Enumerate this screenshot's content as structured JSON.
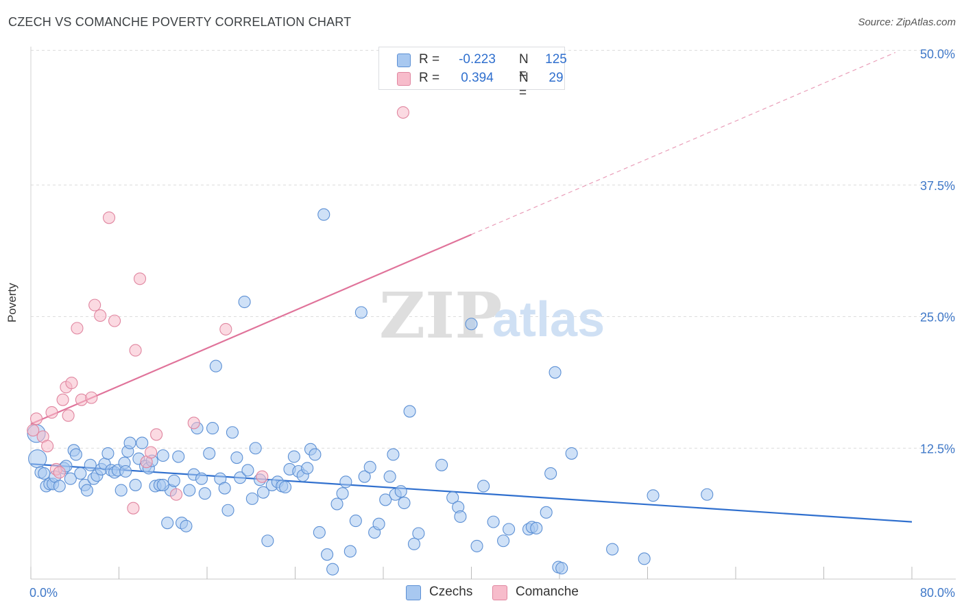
{
  "header": {
    "title": "CZECH VS COMANCHE POVERTY CORRELATION CHART",
    "source": "Source: ZipAtlas.com"
  },
  "watermark": {
    "zip": "ZIP",
    "atlas": "atlas"
  },
  "legend": {
    "rows": [
      {
        "r_label": "R =",
        "r_value": "-0.223",
        "n_label": "N =",
        "n_value": "125",
        "color": "#a8c8f0",
        "border": "#5b8fd4"
      },
      {
        "r_label": "R =",
        "r_value": "0.394",
        "n_label": "N =",
        "n_value": "29",
        "color": "#f7bccb",
        "border": "#e0859f"
      }
    ],
    "bottom": [
      {
        "label": "Czechs",
        "color": "#a8c8f0",
        "border": "#5b8fd4"
      },
      {
        "label": "Comanche",
        "color": "#f7bccb",
        "border": "#e0859f"
      }
    ]
  },
  "chart_data": {
    "type": "scatter",
    "title": "CZECH VS COMANCHE POVERTY CORRELATION CHART",
    "xlabel": "",
    "ylabel": "Poverty",
    "xlim": [
      0,
      80
    ],
    "ylim": [
      0,
      50
    ],
    "x_tick_labels": [
      "0.0%",
      "80.0%"
    ],
    "y_ticks": [
      12.5,
      25.0,
      37.5,
      50.0
    ],
    "y_tick_labels": [
      "12.5%",
      "25.0%",
      "37.5%",
      "50.0%"
    ],
    "grid": true,
    "legend_position": "top-center",
    "series": [
      {
        "name": "Czechs",
        "color": "#a8c8f0",
        "stroke": "#5b8fd4",
        "trend": {
          "x": [
            0,
            80
          ],
          "y": [
            11.0,
            5.5
          ],
          "color": "#2f6fce"
        },
        "points": [
          [
            0.5,
            13.9
          ],
          [
            0.6,
            11.5
          ],
          [
            0.9,
            10.2
          ],
          [
            1.2,
            10.1
          ],
          [
            1.4,
            8.9
          ],
          [
            1.7,
            9.1
          ],
          [
            2.0,
            9.1
          ],
          [
            2.2,
            9.8
          ],
          [
            2.6,
            8.9
          ],
          [
            3.0,
            10.6
          ],
          [
            3.2,
            10.8
          ],
          [
            3.6,
            9.6
          ],
          [
            3.9,
            12.3
          ],
          [
            4.1,
            11.9
          ],
          [
            4.5,
            10.1
          ],
          [
            4.9,
            9.0
          ],
          [
            5.1,
            8.5
          ],
          [
            5.4,
            10.9
          ],
          [
            5.7,
            9.6
          ],
          [
            6.0,
            9.9
          ],
          [
            6.4,
            10.5
          ],
          [
            6.7,
            11.0
          ],
          [
            7.0,
            12.0
          ],
          [
            7.3,
            10.4
          ],
          [
            7.6,
            10.2
          ],
          [
            7.9,
            10.4
          ],
          [
            8.2,
            8.5
          ],
          [
            8.5,
            11.1
          ],
          [
            8.8,
            12.2
          ],
          [
            9.0,
            13.0
          ],
          [
            9.5,
            9.0
          ],
          [
            9.8,
            11.5
          ],
          [
            10.1,
            13.0
          ],
          [
            10.4,
            10.8
          ],
          [
            10.7,
            10.6
          ],
          [
            11.0,
            11.3
          ],
          [
            11.3,
            8.9
          ],
          [
            11.7,
            9.0
          ],
          [
            12.0,
            11.8
          ],
          [
            12.4,
            5.4
          ],
          [
            12.7,
            8.5
          ],
          [
            13.0,
            9.4
          ],
          [
            13.4,
            11.7
          ],
          [
            13.7,
            5.4
          ],
          [
            14.1,
            5.1
          ],
          [
            14.4,
            8.5
          ],
          [
            14.8,
            10.0
          ],
          [
            15.1,
            14.4
          ],
          [
            15.5,
            9.6
          ],
          [
            15.8,
            8.2
          ],
          [
            16.2,
            12.0
          ],
          [
            16.5,
            14.4
          ],
          [
            16.8,
            20.3
          ],
          [
            17.2,
            9.6
          ],
          [
            17.6,
            8.7
          ],
          [
            17.9,
            6.6
          ],
          [
            18.3,
            14.0
          ],
          [
            18.7,
            11.6
          ],
          [
            19.0,
            9.7
          ],
          [
            19.4,
            26.4
          ],
          [
            19.7,
            10.4
          ],
          [
            20.1,
            7.7
          ],
          [
            20.4,
            12.5
          ],
          [
            20.8,
            9.5
          ],
          [
            21.1,
            8.3
          ],
          [
            21.5,
            3.7
          ],
          [
            21.9,
            9.0
          ],
          [
            22.4,
            9.3
          ],
          [
            22.8,
            8.9
          ],
          [
            23.1,
            8.8
          ],
          [
            23.5,
            10.5
          ],
          [
            23.9,
            11.7
          ],
          [
            24.3,
            10.3
          ],
          [
            24.7,
            9.9
          ],
          [
            25.1,
            10.6
          ],
          [
            25.4,
            12.4
          ],
          [
            25.8,
            11.9
          ],
          [
            26.2,
            4.5
          ],
          [
            26.6,
            34.7
          ],
          [
            26.9,
            2.4
          ],
          [
            27.4,
            1.0
          ],
          [
            27.8,
            7.2
          ],
          [
            28.3,
            8.2
          ],
          [
            28.6,
            9.3
          ],
          [
            29.0,
            2.7
          ],
          [
            29.5,
            5.6
          ],
          [
            30.0,
            25.4
          ],
          [
            30.3,
            9.8
          ],
          [
            30.8,
            10.7
          ],
          [
            31.2,
            4.5
          ],
          [
            31.6,
            5.3
          ],
          [
            32.2,
            7.6
          ],
          [
            32.6,
            9.8
          ],
          [
            32.9,
            11.9
          ],
          [
            33.1,
            8.1
          ],
          [
            33.6,
            8.4
          ],
          [
            33.9,
            7.3
          ],
          [
            34.4,
            16.0
          ],
          [
            34.8,
            3.4
          ],
          [
            35.2,
            4.4
          ],
          [
            37.3,
            10.9
          ],
          [
            38.3,
            7.8
          ],
          [
            38.8,
            6.9
          ],
          [
            39.0,
            6.0
          ],
          [
            40.0,
            24.3
          ],
          [
            40.5,
            3.2
          ],
          [
            41.1,
            8.9
          ],
          [
            42.0,
            5.5
          ],
          [
            42.9,
            3.7
          ],
          [
            43.4,
            4.8
          ],
          [
            45.2,
            4.8
          ],
          [
            45.5,
            5.0
          ],
          [
            45.9,
            4.9
          ],
          [
            46.8,
            6.4
          ],
          [
            47.2,
            10.1
          ],
          [
            47.6,
            19.7
          ],
          [
            47.9,
            1.2
          ],
          [
            48.2,
            1.1
          ],
          [
            49.1,
            12.0
          ],
          [
            52.8,
            2.9
          ],
          [
            55.7,
            2.0
          ],
          [
            56.5,
            8.0
          ],
          [
            61.4,
            8.1
          ],
          [
            8.6,
            10.3
          ],
          [
            12.0,
            9.0
          ]
        ]
      },
      {
        "name": "Comanche",
        "color": "#f7bccb",
        "stroke": "#e0859f",
        "trend": {
          "x": [
            0,
            40
          ],
          "y": [
            14.8,
            32.8
          ],
          "extended_x": [
            40,
            78.5
          ],
          "extended_y": [
            32.8,
            50.1
          ],
          "color": "#e0739a"
        },
        "points": [
          [
            0.2,
            14.2
          ],
          [
            0.5,
            15.3
          ],
          [
            1.1,
            13.6
          ],
          [
            1.5,
            12.7
          ],
          [
            1.9,
            15.9
          ],
          [
            2.3,
            10.5
          ],
          [
            2.6,
            10.2
          ],
          [
            2.9,
            17.1
          ],
          [
            3.2,
            18.3
          ],
          [
            3.4,
            15.6
          ],
          [
            3.7,
            18.7
          ],
          [
            4.2,
            23.9
          ],
          [
            4.6,
            17.1
          ],
          [
            5.5,
            17.3
          ],
          [
            5.8,
            26.1
          ],
          [
            6.3,
            25.1
          ],
          [
            7.1,
            34.4
          ],
          [
            7.6,
            24.6
          ],
          [
            9.5,
            21.8
          ],
          [
            9.9,
            28.6
          ],
          [
            9.3,
            6.8
          ],
          [
            10.5,
            11.2
          ],
          [
            10.9,
            12.1
          ],
          [
            11.4,
            13.8
          ],
          [
            13.2,
            8.1
          ],
          [
            14.8,
            14.9
          ],
          [
            17.7,
            23.8
          ],
          [
            21.0,
            9.8
          ],
          [
            33.8,
            44.4
          ]
        ]
      }
    ]
  }
}
